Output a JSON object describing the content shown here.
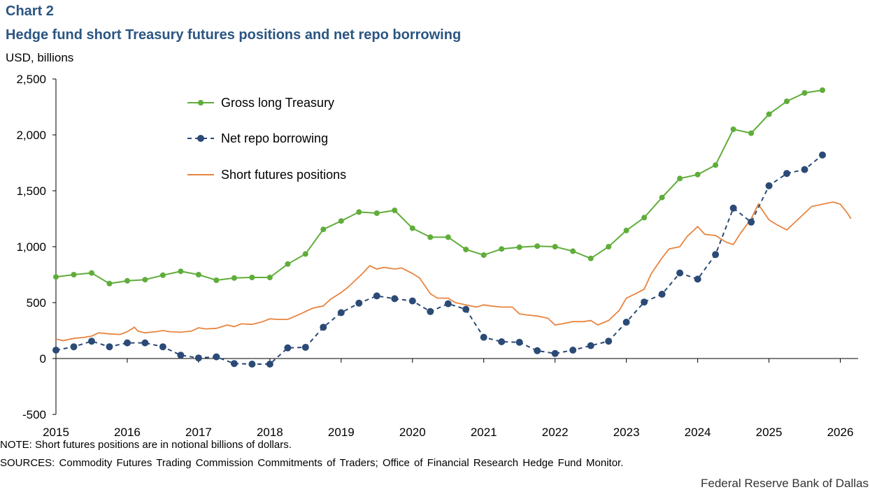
{
  "header": {
    "chart_label": "Chart 2",
    "title": "Hedge fund short Treasury futures positions and net repo borrowing",
    "unit": "USD, billions"
  },
  "footer": {
    "note": "NOTE: Short futures positions are in notional billions of dollars.",
    "sources": "SOURCES: Commodity Futures Trading Commission Commitments of Traders; Office of Financial Research Hedge Fund Monitor.",
    "credit": "Federal Reserve Bank of Dallas"
  },
  "colors": {
    "gross_long": "#5fad3a",
    "net_repo": "#2b4a76",
    "short_futures": "#e8843f",
    "title": "#2b5582"
  },
  "chart_data": {
    "type": "line",
    "xlim": [
      2015,
      2026.25
    ],
    "ylim": [
      -500,
      2500
    ],
    "x_ticks": [
      2015,
      2016,
      2017,
      2018,
      2019,
      2020,
      2021,
      2022,
      2023,
      2024,
      2025,
      2026
    ],
    "x_tick_labels": [
      "2015",
      "2016",
      "2017",
      "2018",
      "2019",
      "2020",
      "2021",
      "2022",
      "2023",
      "2024",
      "2025",
      "2026"
    ],
    "y_ticks": [
      -500,
      0,
      500,
      1000,
      1500,
      2000,
      2500
    ],
    "y_tick_labels": [
      "-500",
      "0",
      "500",
      "1,000",
      "1,500",
      "2,000",
      "2,500"
    ],
    "grid": false,
    "legend_position": "top-left",
    "series": [
      {
        "name": "Gross long Treasury",
        "style": "solid-markers",
        "x": [
          2015.0,
          2015.25,
          2015.5,
          2015.75,
          2016.0,
          2016.25,
          2016.5,
          2016.75,
          2017.0,
          2017.25,
          2017.5,
          2017.75,
          2018.0,
          2018.25,
          2018.5,
          2018.75,
          2019.0,
          2019.25,
          2019.5,
          2019.75,
          2020.0,
          2020.25,
          2020.5,
          2020.75,
          2021.0,
          2021.25,
          2021.5,
          2021.75,
          2022.0,
          2022.25,
          2022.5,
          2022.75,
          2023.0,
          2023.25,
          2023.5,
          2023.75,
          2024.0,
          2024.25,
          2024.5,
          2024.75,
          2025.0,
          2025.25,
          2025.5,
          2025.75
        ],
        "y": [
          730,
          750,
          765,
          670,
          695,
          705,
          745,
          780,
          750,
          700,
          720,
          725,
          725,
          845,
          935,
          1155,
          1230,
          1310,
          1300,
          1325,
          1165,
          1085,
          1085,
          975,
          925,
          980,
          995,
          1005,
          1000,
          960,
          895,
          1000,
          1145,
          1260,
          1440,
          1610,
          1645,
          1730,
          2050,
          2015,
          2185,
          2300,
          2375,
          2400
        ]
      },
      {
        "name": "Net repo borrowing",
        "style": "dashed-markers",
        "x": [
          2015.0,
          2015.25,
          2015.5,
          2015.75,
          2016.0,
          2016.25,
          2016.5,
          2016.75,
          2017.0,
          2017.25,
          2017.5,
          2017.75,
          2018.0,
          2018.25,
          2018.5,
          2018.75,
          2019.0,
          2019.25,
          2019.5,
          2019.75,
          2020.0,
          2020.25,
          2020.5,
          2020.75,
          2021.0,
          2021.25,
          2021.5,
          2021.75,
          2022.0,
          2022.25,
          2022.5,
          2022.75,
          2023.0,
          2023.25,
          2023.5,
          2023.75,
          2024.0,
          2024.25,
          2024.5,
          2024.75,
          2025.0,
          2025.25,
          2025.5,
          2025.75
        ],
        "y": [
          75,
          105,
          155,
          105,
          140,
          140,
          105,
          30,
          5,
          15,
          -45,
          -50,
          -50,
          95,
          100,
          280,
          410,
          495,
          560,
          535,
          515,
          420,
          490,
          440,
          190,
          150,
          145,
          70,
          45,
          75,
          115,
          155,
          325,
          505,
          575,
          765,
          710,
          930,
          1345,
          1220,
          1545,
          1655,
          1690,
          1820
        ]
      },
      {
        "name": "Short futures positions",
        "style": "solid",
        "x": [
          2015.0,
          2015.1,
          2015.25,
          2015.4,
          2015.5,
          2015.6,
          2015.75,
          2015.9,
          2016.0,
          2016.1,
          2016.15,
          2016.25,
          2016.4,
          2016.5,
          2016.6,
          2016.75,
          2016.9,
          2017.0,
          2017.1,
          2017.25,
          2017.4,
          2017.5,
          2017.6,
          2017.75,
          2017.9,
          2018.0,
          2018.1,
          2018.25,
          2018.4,
          2018.5,
          2018.6,
          2018.75,
          2018.85,
          2019.0,
          2019.1,
          2019.2,
          2019.3,
          2019.4,
          2019.5,
          2019.6,
          2019.75,
          2019.85,
          2020.0,
          2020.1,
          2020.25,
          2020.35,
          2020.5,
          2020.6,
          2020.75,
          2020.9,
          2021.0,
          2021.1,
          2021.25,
          2021.4,
          2021.5,
          2021.6,
          2021.75,
          2021.9,
          2022.0,
          2022.1,
          2022.25,
          2022.4,
          2022.5,
          2022.6,
          2022.75,
          2022.9,
          2023.0,
          2023.1,
          2023.25,
          2023.35,
          2023.5,
          2023.6,
          2023.75,
          2023.85,
          2024.0,
          2024.1,
          2024.25,
          2024.4,
          2024.5,
          2024.6,
          2024.75,
          2024.85,
          2025.0,
          2025.1,
          2025.25,
          2025.4,
          2025.5,
          2025.6,
          2025.75,
          2025.9,
          2026.0,
          2026.1,
          2026.15
        ],
        "y": [
          175,
          160,
          180,
          190,
          200,
          230,
          220,
          215,
          240,
          280,
          245,
          230,
          240,
          250,
          240,
          235,
          245,
          275,
          265,
          270,
          300,
          285,
          310,
          305,
          330,
          355,
          350,
          350,
          390,
          420,
          450,
          470,
          530,
          590,
          640,
          700,
          760,
          830,
          800,
          815,
          800,
          810,
          760,
          720,
          580,
          540,
          540,
          500,
          480,
          460,
          480,
          470,
          460,
          460,
          400,
          390,
          380,
          360,
          300,
          310,
          330,
          330,
          340,
          300,
          340,
          430,
          540,
          570,
          620,
          760,
          900,
          980,
          1000,
          1090,
          1180,
          1110,
          1100,
          1040,
          1020,
          1120,
          1250,
          1380,
          1240,
          1200,
          1150,
          1240,
          1300,
          1360,
          1380,
          1400,
          1380,
          1300,
          1250
        ]
      }
    ]
  }
}
